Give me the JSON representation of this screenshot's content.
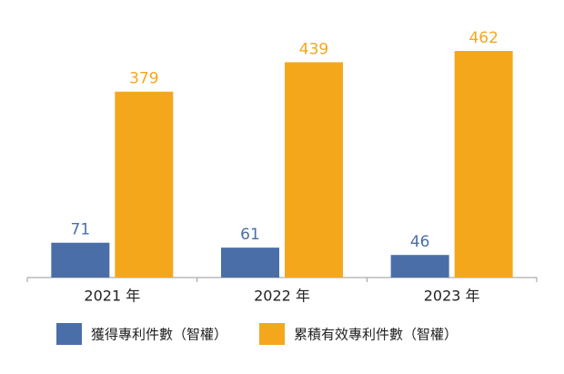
{
  "chart_data": {
    "type": "bar",
    "categories": [
      "2021 年",
      "2022 年",
      "2023 年"
    ],
    "series": [
      {
        "name": "獲得專利件數（智權）",
        "color": "#4a6fa8",
        "values": [
          71,
          61,
          46
        ]
      },
      {
        "name": "累積有效專利件數（智權）",
        "color": "#f5a71c",
        "values": [
          379,
          439,
          462
        ]
      }
    ]
  }
}
